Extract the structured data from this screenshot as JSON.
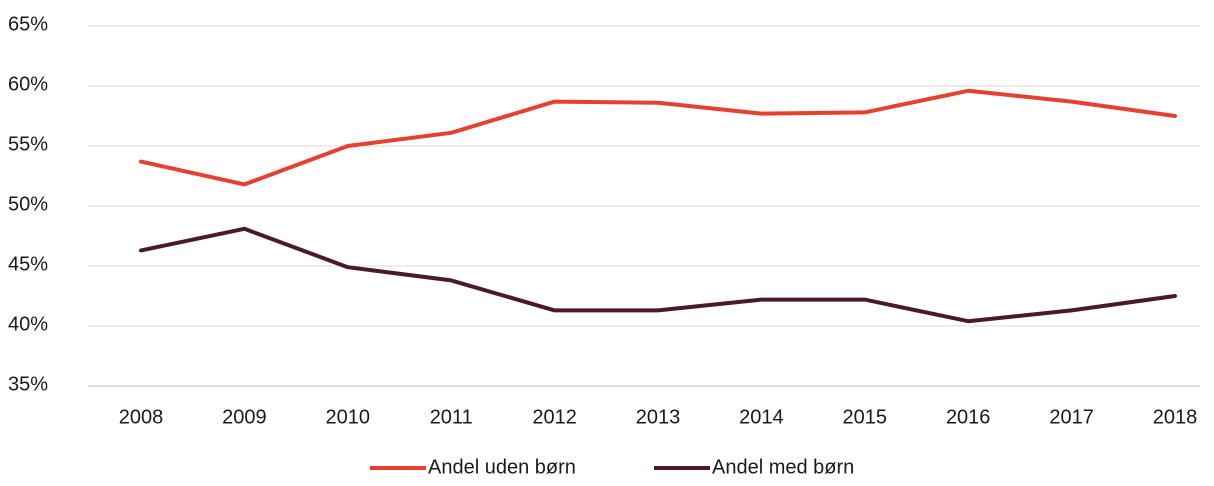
{
  "chart_data": {
    "type": "line",
    "categories": [
      "2008",
      "2009",
      "2010",
      "2011",
      "2012",
      "2013",
      "2014",
      "2015",
      "2016",
      "2017",
      "2018"
    ],
    "series": [
      {
        "name": "Andel uden børn",
        "color": "#e8402f",
        "values": [
          53.7,
          51.8,
          55.0,
          56.1,
          58.7,
          58.6,
          57.7,
          57.8,
          59.6,
          58.7,
          57.5
        ]
      },
      {
        "name": "Andel med børn",
        "color": "#4a1a2a",
        "values": [
          46.3,
          48.1,
          44.9,
          43.8,
          41.3,
          41.3,
          42.2,
          42.2,
          40.4,
          41.3,
          42.5
        ]
      }
    ],
    "ylim": [
      35,
      65
    ],
    "yticks": [
      {
        "value": 35,
        "label": "35%"
      },
      {
        "value": 40,
        "label": "40%"
      },
      {
        "value": 45,
        "label": "45%"
      },
      {
        "value": 50,
        "label": "50%"
      },
      {
        "value": 55,
        "label": "55%"
      },
      {
        "value": 60,
        "label": "60%"
      },
      {
        "value": 65,
        "label": "65%"
      }
    ],
    "grid": true,
    "legend": "bottom"
  }
}
